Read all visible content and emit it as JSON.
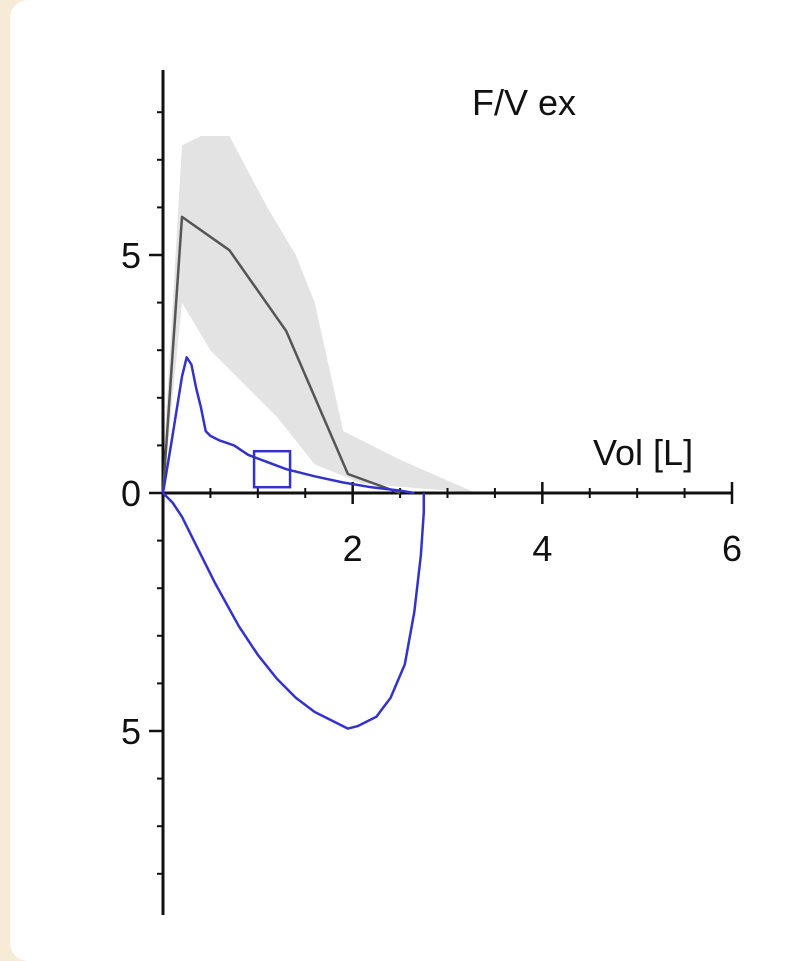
{
  "chart_data": {
    "type": "line",
    "title": "F/V ex",
    "xlabel": "Vol [L]",
    "ylabel": "",
    "xlim": [
      0,
      6
    ],
    "ylim": [
      -9,
      9
    ],
    "x_ticks": [
      {
        "value": 2,
        "label": "2"
      },
      {
        "value": 4,
        "label": "4"
      },
      {
        "value": 6,
        "label": "6"
      }
    ],
    "y_ticks": [
      {
        "value": 5,
        "label": "5"
      },
      {
        "value": 0,
        "label": "0"
      },
      {
        "value": -5,
        "label": "5"
      }
    ],
    "x_minor_step": 0.5,
    "y_minor_step": 1,
    "grid": false,
    "colors": {
      "measured": "#3333cc",
      "predicted": "#555555",
      "band": "#e3e3e3",
      "axis": "#111111"
    },
    "predicted_band": {
      "upper": [
        [
          0,
          0.5
        ],
        [
          0.2,
          7.3
        ],
        [
          0.4,
          7.5
        ],
        [
          0.7,
          7.5
        ],
        [
          1.1,
          6.0
        ],
        [
          1.4,
          5.0
        ],
        [
          1.6,
          4.0
        ],
        [
          1.9,
          1.3
        ],
        [
          2.5,
          0.7
        ],
        [
          3.3,
          0
        ]
      ],
      "lower": [
        [
          0,
          0
        ],
        [
          0.2,
          4.0
        ],
        [
          0.5,
          3.0
        ],
        [
          0.8,
          2.4
        ],
        [
          1.2,
          1.6
        ],
        [
          1.6,
          0.6
        ],
        [
          2.1,
          0.2
        ],
        [
          3.3,
          0
        ]
      ]
    },
    "predicted_curve": [
      [
        0,
        0
      ],
      [
        0.2,
        5.8
      ],
      [
        0.7,
        5.1
      ],
      [
        1.3,
        3.4
      ],
      [
        1.95,
        0.4
      ],
      [
        2.5,
        0
      ]
    ],
    "measured_expiratory": [
      [
        0,
        0
      ],
      [
        0.1,
        1.2
      ],
      [
        0.2,
        2.45
      ],
      [
        0.25,
        2.85
      ],
      [
        0.3,
        2.7
      ],
      [
        0.35,
        2.2
      ],
      [
        0.4,
        1.8
      ],
      [
        0.45,
        1.3
      ],
      [
        0.5,
        1.2
      ],
      [
        0.6,
        1.1
      ],
      [
        0.75,
        1.0
      ],
      [
        0.9,
        0.8
      ],
      [
        1.1,
        0.65
      ],
      [
        1.3,
        0.5
      ],
      [
        1.6,
        0.35
      ],
      [
        1.9,
        0.22
      ],
      [
        2.2,
        0.12
      ],
      [
        2.5,
        0.05
      ],
      [
        2.65,
        0
      ]
    ],
    "measured_inspiratory": [
      [
        0,
        0
      ],
      [
        0.1,
        -0.2
      ],
      [
        0.2,
        -0.5
      ],
      [
        0.35,
        -1.1
      ],
      [
        0.55,
        -1.9
      ],
      [
        0.8,
        -2.8
      ],
      [
        1.0,
        -3.4
      ],
      [
        1.2,
        -3.9
      ],
      [
        1.4,
        -4.3
      ],
      [
        1.6,
        -4.6
      ],
      [
        1.8,
        -4.8
      ],
      [
        1.95,
        -4.95
      ],
      [
        2.05,
        -4.9
      ],
      [
        2.25,
        -4.7
      ],
      [
        2.4,
        -4.3
      ],
      [
        2.55,
        -3.6
      ],
      [
        2.65,
        -2.5
      ],
      [
        2.72,
        -1.3
      ],
      [
        2.75,
        -0.4
      ],
      [
        2.75,
        0
      ]
    ],
    "marker_square": {
      "x": 1.15,
      "y": 0.5,
      "label": ""
    }
  }
}
